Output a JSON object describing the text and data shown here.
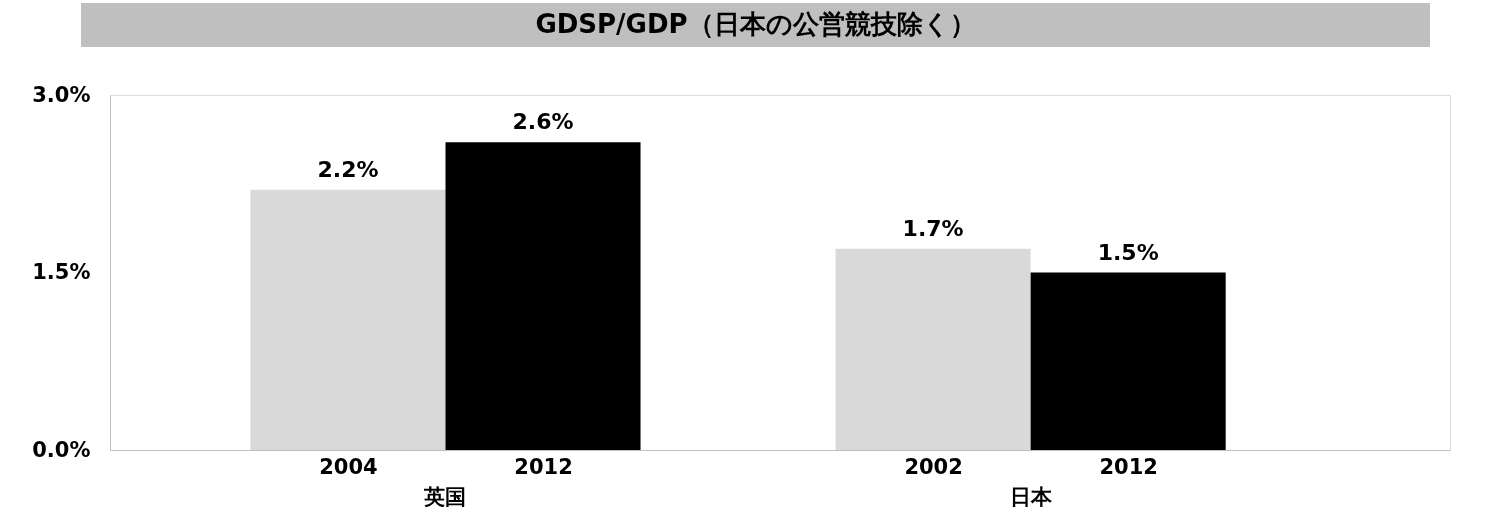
{
  "chart_data": {
    "type": "bar",
    "title": "GDSP/GDP（日本の公営競技除く）",
    "categories": [
      "2004",
      "2012",
      "2002",
      "2012"
    ],
    "values": [
      2.2,
      2.6,
      1.7,
      1.5
    ],
    "value_labels": [
      "2.2%",
      "2.6%",
      "1.7%",
      "1.5%"
    ],
    "colors": [
      "#d9d9d9",
      "#000000",
      "#d9d9d9",
      "#000000"
    ],
    "annotations": [
      "英国",
      "日本"
    ],
    "ylim": [
      0,
      3
    ],
    "yticks": [
      {
        "value": 0,
        "label": "0.0%"
      },
      {
        "value": 1.5,
        "label": "1.5%"
      },
      {
        "value": 3,
        "label": "3.0%"
      }
    ],
    "grid": false
  }
}
